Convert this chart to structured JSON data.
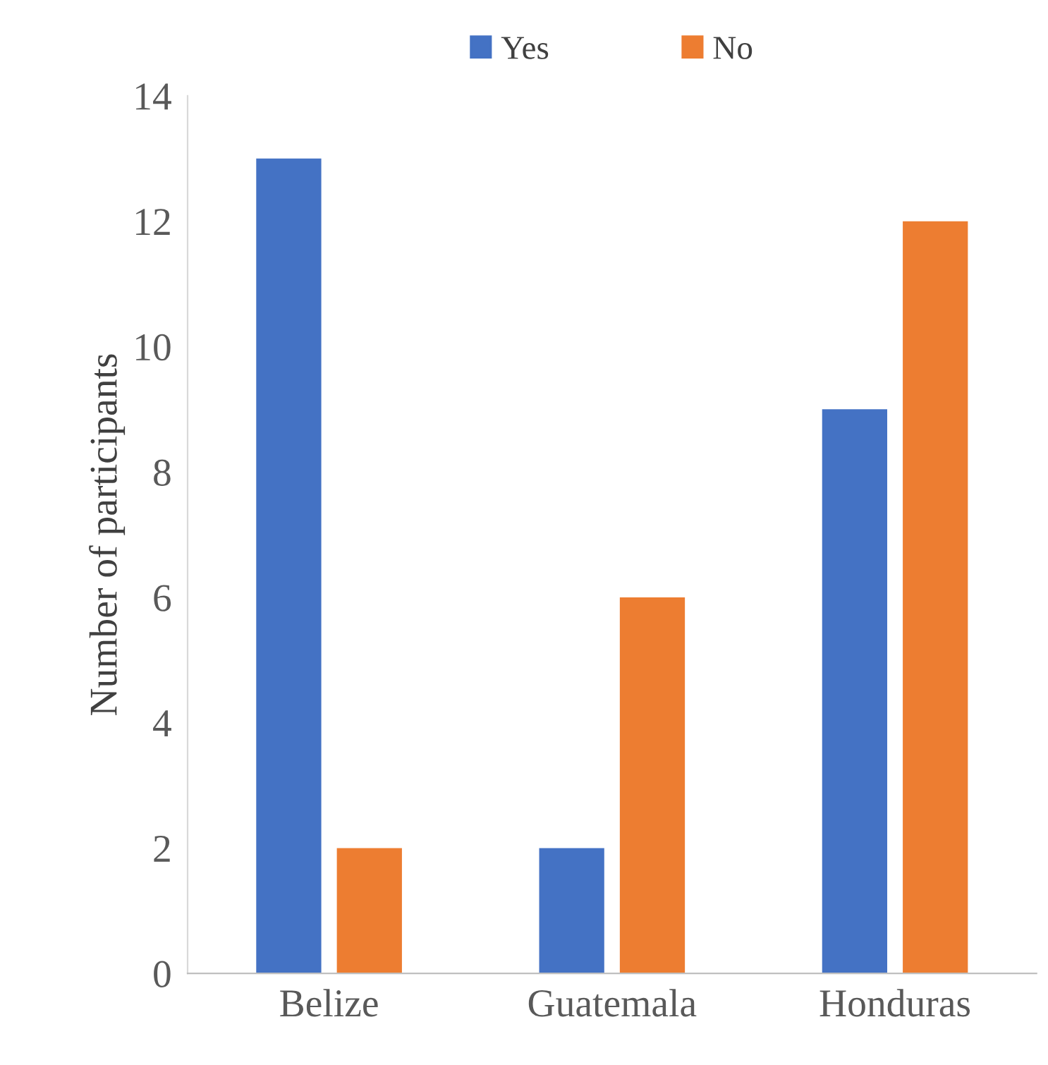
{
  "chart_data": {
    "type": "bar",
    "ylabel": "Number of participants",
    "categories": [
      "Belize",
      "Guatemala",
      "Honduras"
    ],
    "series": [
      {
        "name": "Yes",
        "color": "#4472c4",
        "values": [
          13,
          2,
          9
        ]
      },
      {
        "name": "No",
        "color": "#ed7d31",
        "values": [
          2,
          6,
          12
        ]
      }
    ],
    "ylim": [
      0,
      14
    ],
    "yticks": [
      0,
      2,
      4,
      6,
      8,
      10,
      12,
      14
    ],
    "grid": false,
    "legend": "top"
  }
}
